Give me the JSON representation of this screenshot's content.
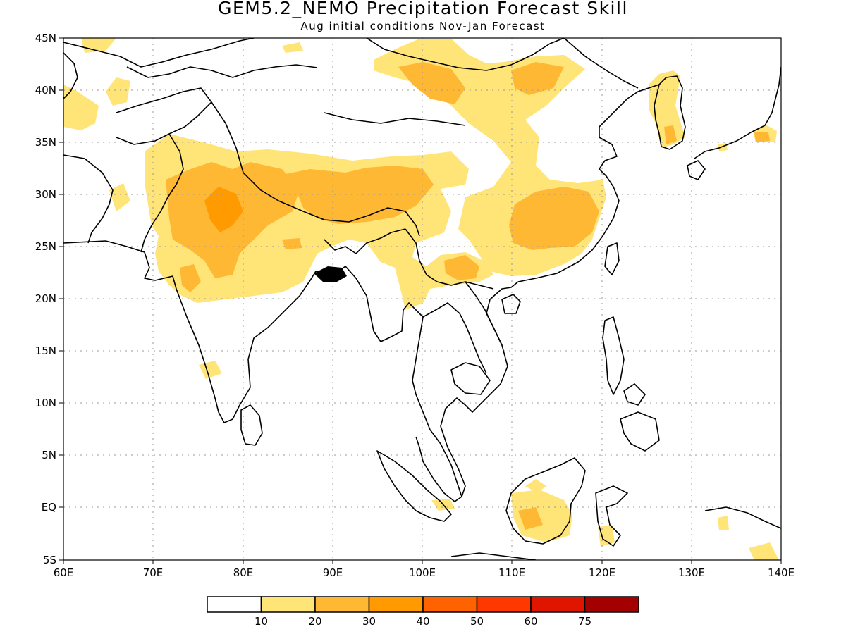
{
  "title": "GEM5.2_NEMO Precipitation Forecast Skill",
  "subtitle": "Aug initial conditions  Nov-Jan Forecast",
  "lat_labels": [
    "45N",
    "40N",
    "35N",
    "30N",
    "25N",
    "20N",
    "15N",
    "10N",
    "5N",
    "EQ",
    "5S"
  ],
  "lon_labels": [
    "60E",
    "70E",
    "80E",
    "90E",
    "100E",
    "110E",
    "120E",
    "130E",
    "140E"
  ],
  "map_extent": {
    "lon": [
      60,
      140
    ],
    "lat": [
      -5,
      45
    ]
  },
  "colorbar": {
    "labels": [
      "10",
      "20",
      "30",
      "40",
      "50",
      "60",
      "75"
    ],
    "colors": [
      "#ffffff",
      "#ffe478",
      "#ffb833",
      "#ff9a00",
      "#ff6300",
      "#ff3800",
      "#e01500",
      "#a50000"
    ]
  }
}
